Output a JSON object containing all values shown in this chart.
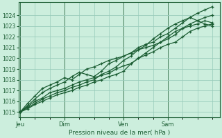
{
  "bg_color": "#cceedd",
  "grid_color": "#99ccbb",
  "line_color": "#1a5c32",
  "axis_color": "#1a5c32",
  "xlabel": "Pression niveau de la mer( hPa )",
  "ylim": [
    1014.5,
    1025.2
  ],
  "yticks": [
    1015,
    1016,
    1017,
    1018,
    1019,
    1020,
    1021,
    1022,
    1023,
    1024
  ],
  "xtick_labels": [
    "Jeu",
    "Dim",
    "Ven",
    "Sam"
  ],
  "xtick_positions": [
    0,
    3,
    7,
    10
  ],
  "total_steps": 14,
  "series": [
    {
      "x": [
        0,
        0.5,
        1,
        1.5,
        2,
        2.5,
        3,
        3.5,
        4,
        4.5,
        5,
        5.5,
        6,
        6.5,
        7,
        7.5,
        8,
        8.5,
        9,
        9.5,
        10,
        10.5,
        11,
        11.5,
        12,
        12.5,
        13
      ],
      "y": [
        1015.0,
        1015.5,
        1016.0,
        1016.3,
        1016.8,
        1017.0,
        1017.2,
        1017.5,
        1017.8,
        1018.0,
        1018.2,
        1018.4,
        1018.6,
        1019.0,
        1019.3,
        1019.5,
        1020.0,
        1020.3,
        1020.6,
        1021.0,
        1021.3,
        1021.5,
        1022.0,
        1022.5,
        1022.8,
        1023.0,
        1023.2
      ]
    },
    {
      "x": [
        0,
        0.5,
        1,
        1.5,
        2,
        2.5,
        3,
        3.5,
        4,
        4.5,
        5,
        5.5,
        6,
        6.5,
        7,
        7.5,
        8,
        8.5,
        9,
        9.5,
        10,
        10.5,
        11,
        11.5,
        12,
        12.5,
        13
      ],
      "y": [
        1015.0,
        1015.8,
        1016.5,
        1017.2,
        1017.5,
        1017.8,
        1018.2,
        1018.0,
        1018.5,
        1019.0,
        1019.2,
        1019.5,
        1019.8,
        1020.0,
        1020.2,
        1020.5,
        1021.0,
        1021.3,
        1021.5,
        1022.0,
        1022.3,
        1022.8,
        1023.3,
        1023.8,
        1024.2,
        1024.5,
        1024.8
      ]
    },
    {
      "x": [
        0,
        0.5,
        1,
        1.5,
        2,
        2.5,
        3,
        3.5,
        4,
        4.5,
        5,
        5.5,
        6,
        6.5,
        7,
        7.5,
        8,
        8.5,
        9,
        9.5,
        10,
        10.5,
        11,
        11.5,
        12,
        12.5,
        13
      ],
      "y": [
        1015.0,
        1015.6,
        1016.2,
        1016.8,
        1017.2,
        1017.5,
        1017.8,
        1018.3,
        1018.7,
        1018.5,
        1018.3,
        1018.8,
        1019.5,
        1019.8,
        1020.2,
        1020.5,
        1020.8,
        1021.0,
        1021.2,
        1021.5,
        1021.8,
        1022.2,
        1022.8,
        1023.2,
        1023.5,
        1023.8,
        1024.0
      ]
    },
    {
      "x": [
        0,
        0.5,
        1,
        1.5,
        2,
        2.5,
        3,
        3.5,
        4,
        4.5,
        5,
        5.5,
        6,
        6.5,
        7,
        7.5,
        8,
        8.5,
        9,
        9.5,
        10,
        10.5,
        11,
        11.5,
        12,
        12.5,
        13
      ],
      "y": [
        1015.0,
        1015.4,
        1015.8,
        1016.2,
        1016.5,
        1016.8,
        1017.0,
        1017.3,
        1017.5,
        1017.8,
        1018.0,
        1018.5,
        1018.8,
        1019.2,
        1019.8,
        1020.2,
        1020.8,
        1021.2,
        1021.8,
        1022.3,
        1022.8,
        1023.2,
        1023.5,
        1023.8,
        1023.5,
        1023.2,
        1023.0
      ]
    },
    {
      "x": [
        0,
        0.5,
        1,
        1.5,
        2,
        2.5,
        3,
        3.5,
        4,
        4.5,
        5,
        5.5,
        6,
        6.5,
        7,
        7.5,
        8,
        8.5,
        9,
        9.5,
        10,
        10.5,
        11,
        11.5,
        12,
        12.5,
        13
      ],
      "y": [
        1015.0,
        1015.3,
        1015.7,
        1016.0,
        1016.3,
        1016.6,
        1016.8,
        1017.0,
        1017.3,
        1017.5,
        1017.8,
        1018.0,
        1018.3,
        1018.5,
        1018.8,
        1019.5,
        1020.0,
        1020.5,
        1021.0,
        1021.5,
        1022.0,
        1022.5,
        1022.8,
        1023.0,
        1023.2,
        1023.5,
        1023.3
      ]
    }
  ],
  "figsize": [
    3.2,
    2.0
  ],
  "dpi": 100
}
